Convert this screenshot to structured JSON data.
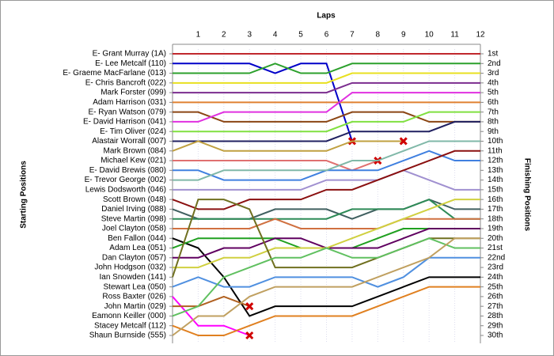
{
  "chart_data": {
    "type": "lap",
    "title": "Laps",
    "ylabel": "Starting Positions",
    "y2label": "Finishing Positions",
    "x": [
      0,
      1,
      2,
      3,
      4,
      5,
      6,
      7,
      8,
      9,
      10,
      11,
      12
    ],
    "xlim": [
      0,
      12
    ],
    "xticks": [
      1,
      2,
      3,
      4,
      5,
      6,
      7,
      8,
      9,
      10,
      11,
      12
    ],
    "ylim": [
      1,
      30
    ],
    "grid": true,
    "finishing_positions": [
      "1st",
      "2nd",
      "3rd",
      "4th",
      "5th",
      "6th",
      "7th",
      "8th",
      "9th",
      "10th",
      "11th",
      "12th",
      "13th",
      "14th",
      "15th",
      "16th",
      "17th",
      "18th",
      "19th",
      "20th",
      "21st",
      "22nd",
      "23rd",
      "24th",
      "25th",
      "26th",
      "27th",
      "28th",
      "29th",
      "30th"
    ],
    "series": [
      {
        "name": "E- Grant Murray (1A)",
        "color": "#c0282d",
        "values": [
          1,
          1,
          1,
          1,
          1,
          1,
          1,
          1,
          1,
          1,
          1,
          1,
          1
        ]
      },
      {
        "name": "E- Lee Metcalf (110)",
        "color": "#0000c8",
        "retired": true,
        "values": [
          2,
          2,
          2,
          2,
          3,
          2,
          2,
          10,
          null,
          null,
          null,
          null,
          null
        ]
      },
      {
        "name": "E- Graeme MacFarlane (013)",
        "color": "#2ca02c",
        "values": [
          3,
          3,
          3,
          3,
          2,
          3,
          3,
          2,
          2,
          2,
          2,
          2,
          2
        ]
      },
      {
        "name": "E- Chris Bancroft (022)",
        "color": "#e8e020",
        "values": [
          4,
          4,
          4,
          4,
          4,
          4,
          4,
          3,
          3,
          3,
          3,
          3,
          3
        ]
      },
      {
        "name": "Mark Forster (099)",
        "color": "#7b2d8e",
        "values": [
          5,
          5,
          5,
          5,
          5,
          5,
          5,
          4,
          4,
          4,
          4,
          4,
          4
        ]
      },
      {
        "name": "Adam Harrison (031)",
        "color": "#e08030",
        "values": [
          6,
          6,
          6,
          6,
          6,
          6,
          6,
          6,
          6,
          6,
          6,
          6,
          6
        ]
      },
      {
        "name": "E- Ryan Watson (079)",
        "color": "#8b4513",
        "values": [
          7,
          7,
          8,
          8,
          8,
          8,
          8,
          7,
          7,
          7,
          8,
          8,
          8
        ]
      },
      {
        "name": "E- David Harrison (041)",
        "color": "#e030e0",
        "values": [
          8,
          8,
          7,
          7,
          7,
          7,
          7,
          5,
          5,
          5,
          5,
          5,
          5
        ]
      },
      {
        "name": "E- Tim Oliver (024)",
        "color": "#80e040",
        "values": [
          9,
          9,
          9,
          9,
          9,
          9,
          9,
          8,
          8,
          8,
          7,
          7,
          7
        ]
      },
      {
        "name": "Alastair Worrall (007)",
        "color": "#202060",
        "values": [
          10,
          10,
          10,
          10,
          10,
          10,
          10,
          9,
          9,
          9,
          9,
          8,
          8
        ]
      },
      {
        "name": "Mark Brown (084)",
        "color": "#c0a040",
        "retired": true,
        "values": [
          11,
          10,
          11,
          11,
          11,
          11,
          11,
          10,
          10,
          10,
          null,
          null,
          null
        ]
      },
      {
        "name": "Michael Kew (021)",
        "color": "#e07070",
        "retired": true,
        "values": [
          12,
          12,
          12,
          12,
          12,
          12,
          12,
          13,
          12,
          null,
          null,
          null,
          null
        ]
      },
      {
        "name": "E- David Brewis (080)",
        "color": "#4080e0",
        "values": [
          13,
          13,
          14,
          14,
          14,
          14,
          13,
          13,
          13,
          12,
          11,
          12,
          12
        ]
      },
      {
        "name": "E- Trevor George (002)",
        "color": "#80b8a8",
        "values": [
          14,
          14,
          13,
          13,
          13,
          13,
          13,
          12,
          12,
          11,
          10,
          10,
          10
        ]
      },
      {
        "name": "Lewis Dodsworth (046)",
        "color": "#a090d0",
        "values": [
          15,
          15,
          15,
          15,
          15,
          15,
          14,
          14,
          14,
          13,
          14,
          15,
          15
        ]
      },
      {
        "name": "Scott Brown (048)",
        "color": "#8a1010",
        "values": [
          16,
          17,
          17,
          16,
          16,
          16,
          15,
          15,
          14,
          13,
          12,
          11,
          11
        ]
      },
      {
        "name": "Daniel Irving (088)",
        "color": "#406060",
        "values": [
          17,
          18,
          18,
          18,
          17,
          17,
          17,
          18,
          17,
          17,
          16,
          17,
          17
        ]
      },
      {
        "name": "Steve Martin (098)",
        "color": "#2e8b57",
        "values": [
          18,
          18,
          18,
          18,
          18,
          18,
          18,
          17,
          17,
          17,
          16,
          18,
          18
        ]
      },
      {
        "name": "Joel Clayton (058)",
        "color": "#d07040",
        "values": [
          19,
          19,
          19,
          19,
          18,
          19,
          19,
          19,
          19,
          18,
          18,
          18,
          18
        ]
      },
      {
        "name": "Ben Fallon (044)",
        "color": "#000000",
        "values": [
          20,
          21,
          24,
          28,
          27,
          27,
          27,
          27,
          26,
          25,
          24,
          24,
          24
        ]
      },
      {
        "name": "Adam Lea (051)",
        "color": "#20a020",
        "values": [
          21,
          20,
          20,
          20,
          20,
          21,
          21,
          21,
          20,
          19,
          19,
          19,
          19
        ]
      },
      {
        "name": "Dan Clayton (057)",
        "color": "#600060",
        "values": [
          22,
          22,
          21,
          21,
          20,
          20,
          21,
          21,
          21,
          20,
          19,
          19,
          19
        ]
      },
      {
        "name": "John Hodgson (032)",
        "color": "#d0d040",
        "values": [
          23,
          23,
          22,
          22,
          21,
          21,
          21,
          20,
          19,
          18,
          17,
          16,
          16
        ]
      },
      {
        "name": "Ian Snowden (141)",
        "color": "#707020",
        "values": [
          24,
          16,
          16,
          17,
          23,
          23,
          23,
          23,
          22,
          21,
          20,
          20,
          20
        ]
      },
      {
        "name": "Stewart Lea (050)",
        "color": "#5090e0",
        "values": [
          25,
          24,
          25,
          25,
          24,
          24,
          24,
          24,
          25,
          24,
          22,
          22,
          22
        ]
      },
      {
        "name": "Ross Baxter (026)",
        "color": "#ff00ff",
        "retired": true,
        "values": [
          26,
          29,
          29,
          30,
          null,
          null,
          null,
          null,
          null,
          null,
          null,
          null,
          null
        ]
      },
      {
        "name": "John Martin (029)",
        "color": "#b06020",
        "retired": true,
        "values": [
          27,
          27,
          26,
          27,
          null,
          null,
          null,
          null,
          null,
          null,
          null,
          null,
          null
        ]
      },
      {
        "name": "Eamonn Keiller (000)",
        "color": "#60c060",
        "values": [
          28,
          27,
          24,
          23,
          22,
          22,
          21,
          22,
          22,
          21,
          20,
          21,
          21
        ]
      },
      {
        "name": "Stacey Metcalf (112)",
        "color": "#e08020",
        "values": [
          29,
          30,
          30,
          29,
          28,
          28,
          28,
          28,
          27,
          26,
          25,
          25,
          25
        ]
      },
      {
        "name": "Shaun Burnside (555)",
        "color": "#c0a060",
        "values": [
          30,
          28,
          28,
          26,
          25,
          25,
          25,
          25,
          24,
          23,
          22,
          20,
          20
        ]
      }
    ]
  }
}
